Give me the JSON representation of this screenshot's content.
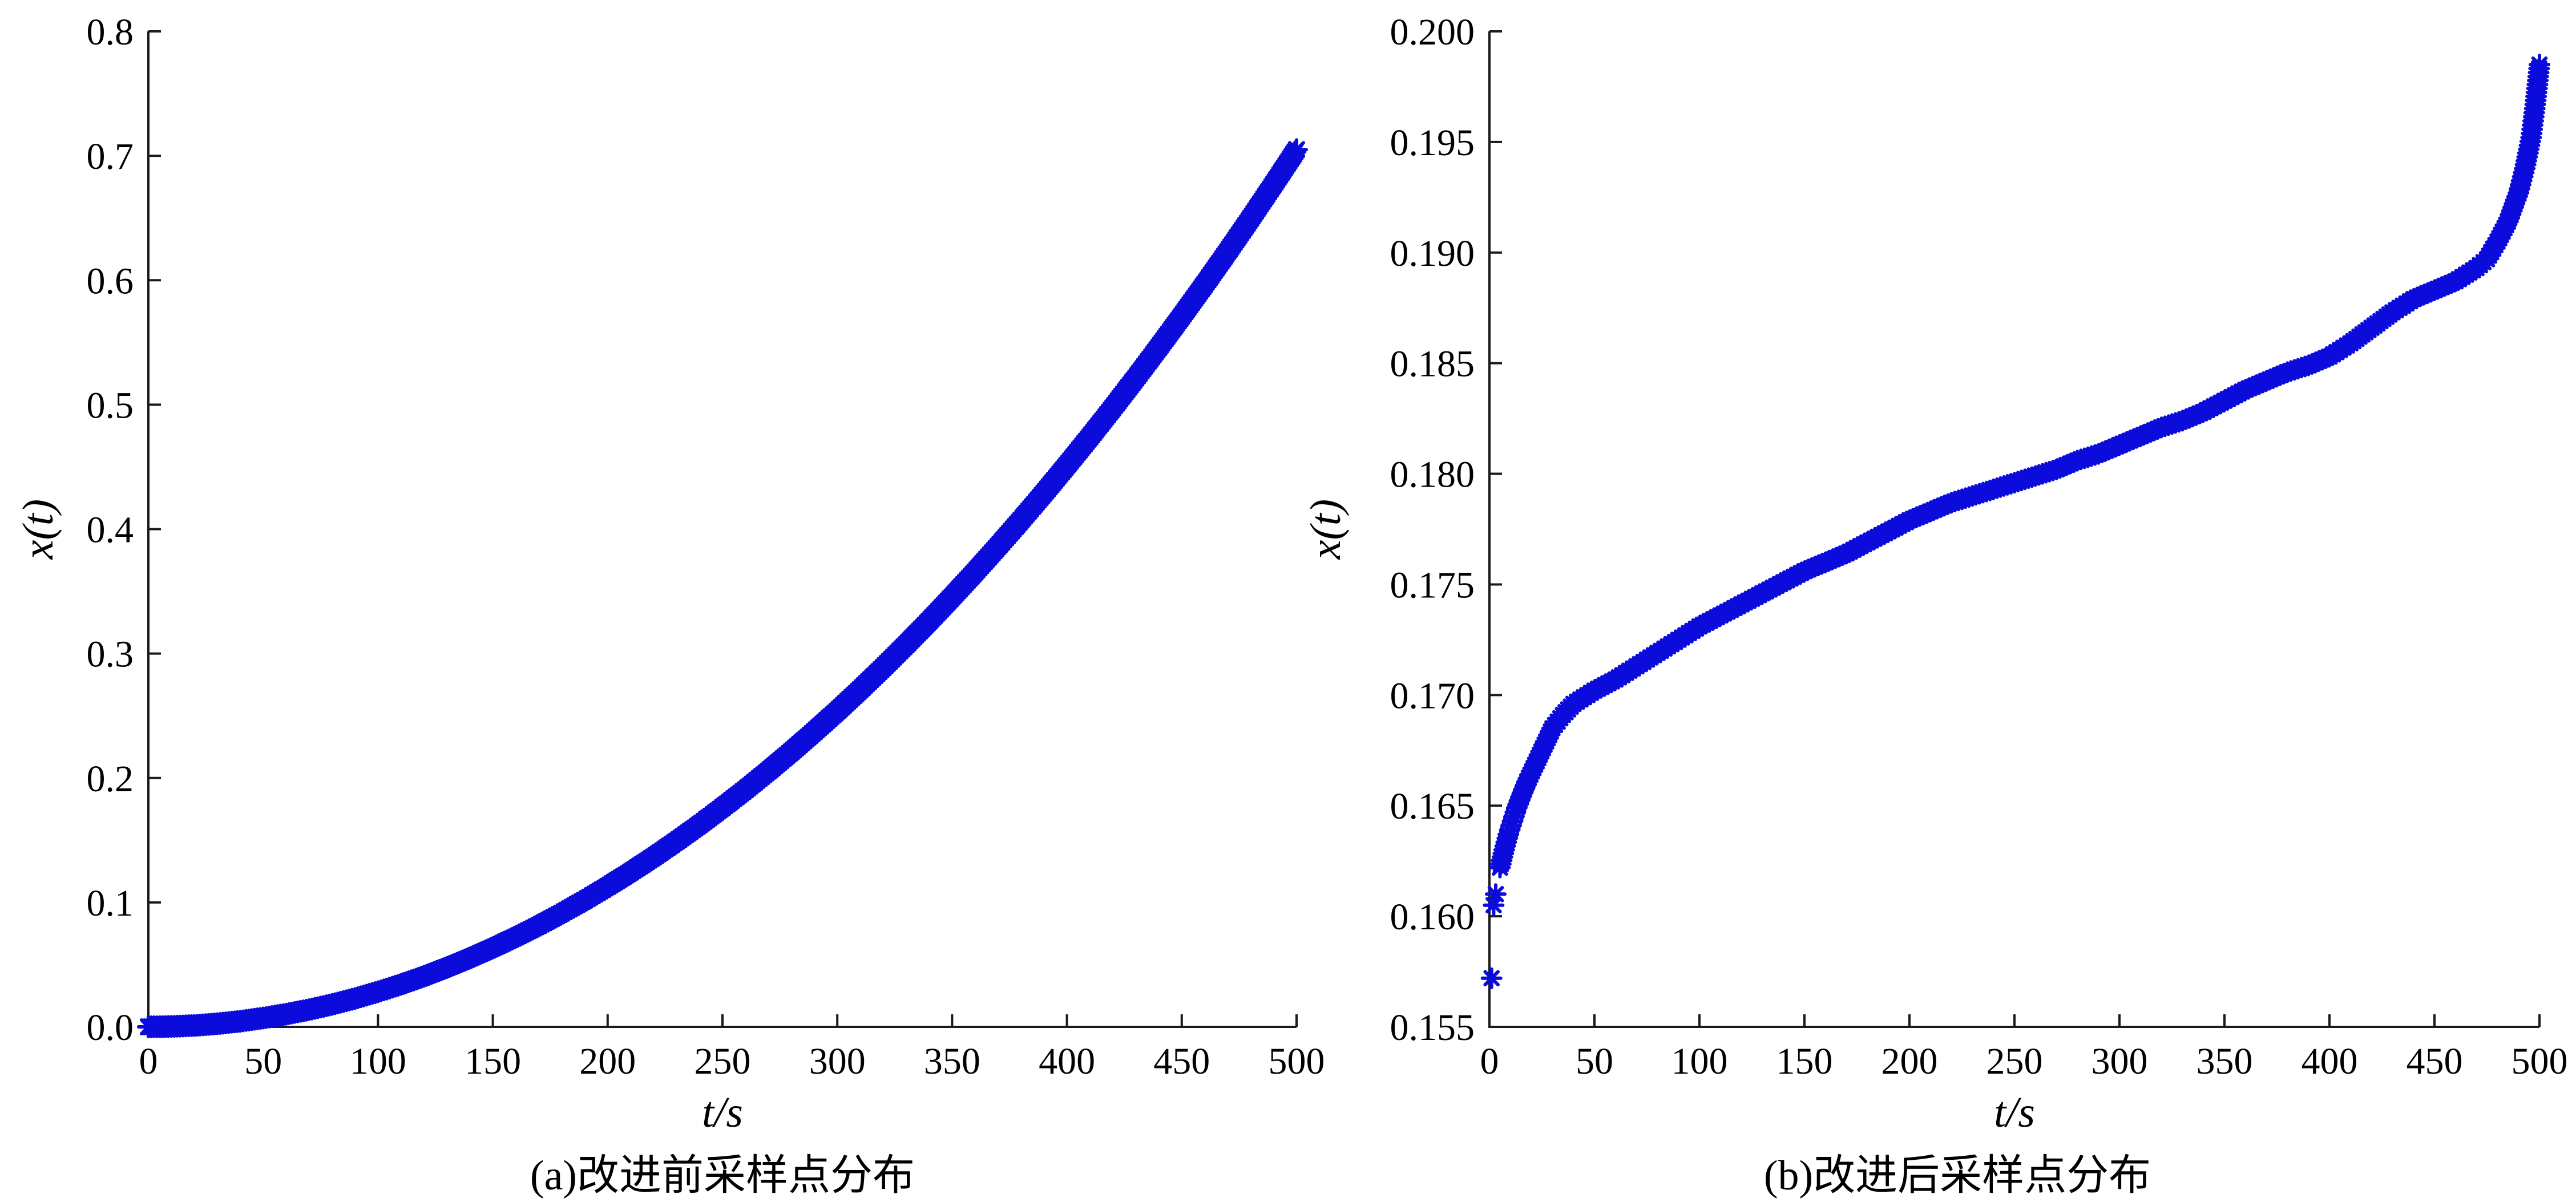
{
  "colors": {
    "background": "#ffffff",
    "marker": "#0b0bdc",
    "axis": "#1a1a1a",
    "text": "#000000"
  },
  "chart_data": [
    {
      "type": "scatter",
      "id": "a",
      "title": "(a)改进前采样点分布",
      "xlabel": "t/s",
      "ylabel": "x(t)",
      "marker": "*",
      "grid": false,
      "legend": "none",
      "xlim": [
        0,
        500
      ],
      "ylim": [
        0.0,
        0.8
      ],
      "x_ticks": [
        0,
        50,
        100,
        150,
        200,
        250,
        300,
        350,
        400,
        450,
        500
      ],
      "x_tick_labels": [
        "0",
        "50",
        "100",
        "150",
        "200",
        "250",
        "300",
        "350",
        "400",
        "450",
        "500"
      ],
      "y_ticks": [
        0.0,
        0.1,
        0.2,
        0.3,
        0.4,
        0.5,
        0.6,
        0.7,
        0.8
      ],
      "y_tick_labels": [
        "0.0",
        "0.1",
        "0.2",
        "0.3",
        "0.4",
        "0.5",
        "0.6",
        "0.7",
        "0.8"
      ],
      "series": [
        {
          "name": "sampling-points-before",
          "x": [
            0,
            10,
            20,
            30,
            40,
            50,
            60,
            70,
            80,
            90,
            100,
            110,
            120,
            130,
            140,
            150,
            160,
            170,
            180,
            190,
            200,
            210,
            220,
            230,
            240,
            250,
            260,
            270,
            280,
            290,
            300,
            310,
            320,
            330,
            340,
            350,
            360,
            370,
            380,
            390,
            400,
            410,
            420,
            430,
            440,
            450,
            460,
            470,
            480,
            490,
            500
          ],
          "y": [
            0.0,
            0.0003,
            0.0011,
            0.0025,
            0.0045,
            0.0071,
            0.0102,
            0.0138,
            0.018,
            0.0228,
            0.0282,
            0.0341,
            0.0406,
            0.0477,
            0.0553,
            0.0635,
            0.0722,
            0.0815,
            0.0914,
            0.1018,
            0.1128,
            0.1244,
            0.1365,
            0.1492,
            0.1624,
            0.1763,
            0.1906,
            0.2056,
            0.2211,
            0.2372,
            0.2538,
            0.271,
            0.2888,
            0.3071,
            0.326,
            0.3455,
            0.3655,
            0.3861,
            0.4072,
            0.4289,
            0.4512,
            0.474,
            0.4974,
            0.5214,
            0.546,
            0.5711,
            0.5967,
            0.6229,
            0.6497,
            0.6771,
            0.705
          ]
        }
      ]
    },
    {
      "type": "scatter",
      "id": "b",
      "title": "(b)改进后采样点分布",
      "xlabel": "t/s",
      "ylabel": "x(t)",
      "marker": "*",
      "grid": false,
      "legend": "none",
      "xlim": [
        0,
        500
      ],
      "ylim": [
        0.155,
        0.2
      ],
      "x_ticks": [
        0,
        50,
        100,
        150,
        200,
        250,
        300,
        350,
        400,
        450,
        500
      ],
      "x_tick_labels": [
        "0",
        "50",
        "100",
        "150",
        "200",
        "250",
        "300",
        "350",
        "400",
        "450",
        "500"
      ],
      "y_ticks": [
        0.155,
        0.16,
        0.165,
        0.17,
        0.175,
        0.18,
        0.185,
        0.19,
        0.195,
        0.2
      ],
      "y_tick_labels": [
        "0.155",
        "0.160",
        "0.165",
        "0.170",
        "0.175",
        "0.180",
        "0.185",
        "0.190",
        "0.195",
        "0.200"
      ],
      "series": [
        {
          "name": "initial-isolated-points",
          "discrete": true,
          "x": [
            1,
            2,
            3
          ],
          "y": [
            0.1572,
            0.1605,
            0.161
          ]
        },
        {
          "name": "sampling-points-after",
          "x": [
            5,
            7,
            9,
            11,
            13,
            15,
            18,
            21,
            24,
            27,
            30,
            35,
            40,
            45,
            50,
            60,
            70,
            80,
            90,
            100,
            110,
            120,
            130,
            140,
            150,
            160,
            170,
            180,
            190,
            200,
            210,
            220,
            230,
            240,
            250,
            260,
            270,
            280,
            290,
            300,
            310,
            320,
            330,
            340,
            350,
            360,
            370,
            380,
            390,
            400,
            410,
            420,
            430,
            440,
            450,
            460,
            470,
            475,
            480,
            485,
            490,
            493,
            496,
            498,
            500
          ],
          "y": [
            0.1622,
            0.163,
            0.1637,
            0.1643,
            0.1649,
            0.1654,
            0.1661,
            0.1667,
            0.1673,
            0.1679,
            0.1685,
            0.1691,
            0.1696,
            0.1699,
            0.1702,
            0.1707,
            0.1713,
            0.1719,
            0.1725,
            0.1731,
            0.1736,
            0.1741,
            0.1746,
            0.1751,
            0.1756,
            0.176,
            0.1764,
            0.1769,
            0.1774,
            0.1779,
            0.1783,
            0.1787,
            0.179,
            0.1793,
            0.1796,
            0.1799,
            0.1802,
            0.1806,
            0.1809,
            0.1813,
            0.1817,
            0.1821,
            0.1824,
            0.1828,
            0.1833,
            0.1838,
            0.1842,
            0.1846,
            0.1849,
            0.1853,
            0.1859,
            0.1866,
            0.1873,
            0.1879,
            0.1883,
            0.1887,
            0.1893,
            0.1897,
            0.1905,
            0.1914,
            0.1927,
            0.1938,
            0.1952,
            0.1967,
            0.1985
          ]
        }
      ]
    }
  ]
}
